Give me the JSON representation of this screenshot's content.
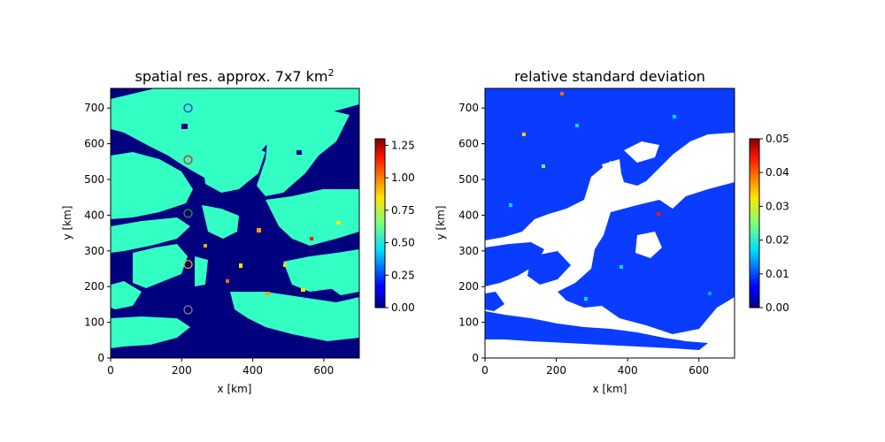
{
  "chart_data": [
    {
      "type": "heatmap",
      "title": "spatial res. approx. 7x7 km",
      "title_superscript": "2",
      "xlabel": "x [km]",
      "ylabel": "y [km]",
      "xlim": [
        0,
        700
      ],
      "ylim": [
        0,
        755
      ],
      "xticks": [
        "0",
        "200",
        "400",
        "600"
      ],
      "yticks": [
        "0",
        "100",
        "200",
        "300",
        "400",
        "500",
        "600",
        "700"
      ],
      "colormap": "jet",
      "colorbar": {
        "min": 0.0,
        "max": 1.3,
        "ticks": [
          "0.00",
          "0.25",
          "0.50",
          "0.75",
          "1.00",
          "1.25"
        ]
      },
      "background_color": "#00007f",
      "field_color": "#33ffc4",
      "markers": [
        {
          "x": 218,
          "y": 700,
          "color": "#1f3fbf"
        },
        {
          "x": 218,
          "y": 555,
          "color": "#d62728"
        },
        {
          "x": 218,
          "y": 405,
          "color": "#2ca02c"
        },
        {
          "x": 218,
          "y": 262,
          "color": "#ff9f00"
        },
        {
          "x": 218,
          "y": 135,
          "color": "#7f7f7f"
        }
      ]
    },
    {
      "type": "heatmap",
      "title": "relative standard deviation",
      "xlabel": "x [km]",
      "ylabel": "y [km]",
      "xlim": [
        0,
        700
      ],
      "ylim": [
        0,
        755
      ],
      "xticks": [
        "0",
        "200",
        "400",
        "600"
      ],
      "yticks": [
        "0",
        "100",
        "200",
        "300",
        "400",
        "500",
        "600",
        "700"
      ],
      "colormap": "jet",
      "colorbar": {
        "min": 0.0,
        "max": 0.05,
        "ticks": [
          "0.00",
          "0.01",
          "0.02",
          "0.03",
          "0.04",
          "0.05"
        ]
      },
      "background_color": "#ffffff",
      "field_color": "#0a3cff"
    }
  ]
}
